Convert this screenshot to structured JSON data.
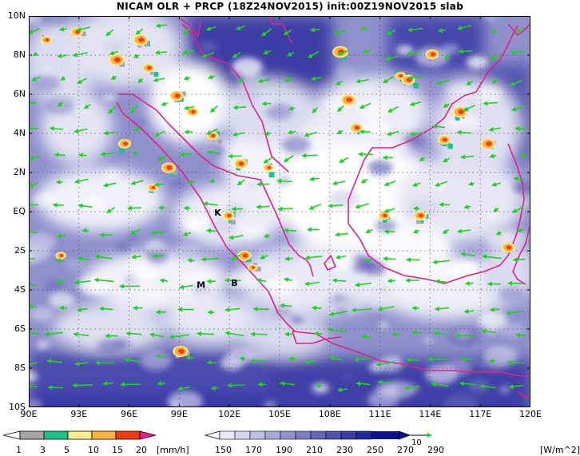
{
  "title": "NICAM OLR + PRCP (18Z24NOV2015) init:00Z19NOV2015 slab",
  "lat_labels": [
    "10N",
    "8N",
    "6N",
    "4N",
    "2N",
    "EQ",
    "2S",
    "4S",
    "6S",
    "8S",
    "10S"
  ],
  "lon_labels": [
    "90E",
    "93E",
    "96E",
    "99E",
    "102E",
    "105E",
    "108E",
    "111E",
    "114E",
    "117E",
    "120E"
  ],
  "city_markers": [
    {
      "letter": "K",
      "lon": 101.3,
      "lat": -0.2
    },
    {
      "letter": "B",
      "lon": 102.3,
      "lat": -3.8
    },
    {
      "letter": "M",
      "lon": 100.3,
      "lat": -3.9
    }
  ],
  "precip_legend": {
    "ticks": [
      "1",
      "3",
      "5",
      "10",
      "15",
      "20"
    ],
    "unit": "[mm/h]",
    "colors": [
      "#ffffff",
      "#a5a5a5",
      "#1fc18b",
      "#fff08c",
      "#ffb142",
      "#f23b12",
      "#ee1d8f"
    ]
  },
  "olr_legend": {
    "ticks": [
      "150",
      "170",
      "190",
      "210",
      "230",
      "250",
      "270",
      "290"
    ],
    "unit": "[W/m^2]",
    "vector_ref": "10",
    "colors": [
      "#ffffff",
      "#ebebf8",
      "#d5d5ee",
      "#bfbfe3",
      "#a9a9d9",
      "#9393ce",
      "#7d7dc4",
      "#6767ba",
      "#5151b0",
      "#3b3ba6",
      "#25259c",
      "#0f0f91"
    ]
  },
  "colors": {
    "coast": "#e0218a",
    "wind": "#1fd21f",
    "grid": "#555555"
  }
}
